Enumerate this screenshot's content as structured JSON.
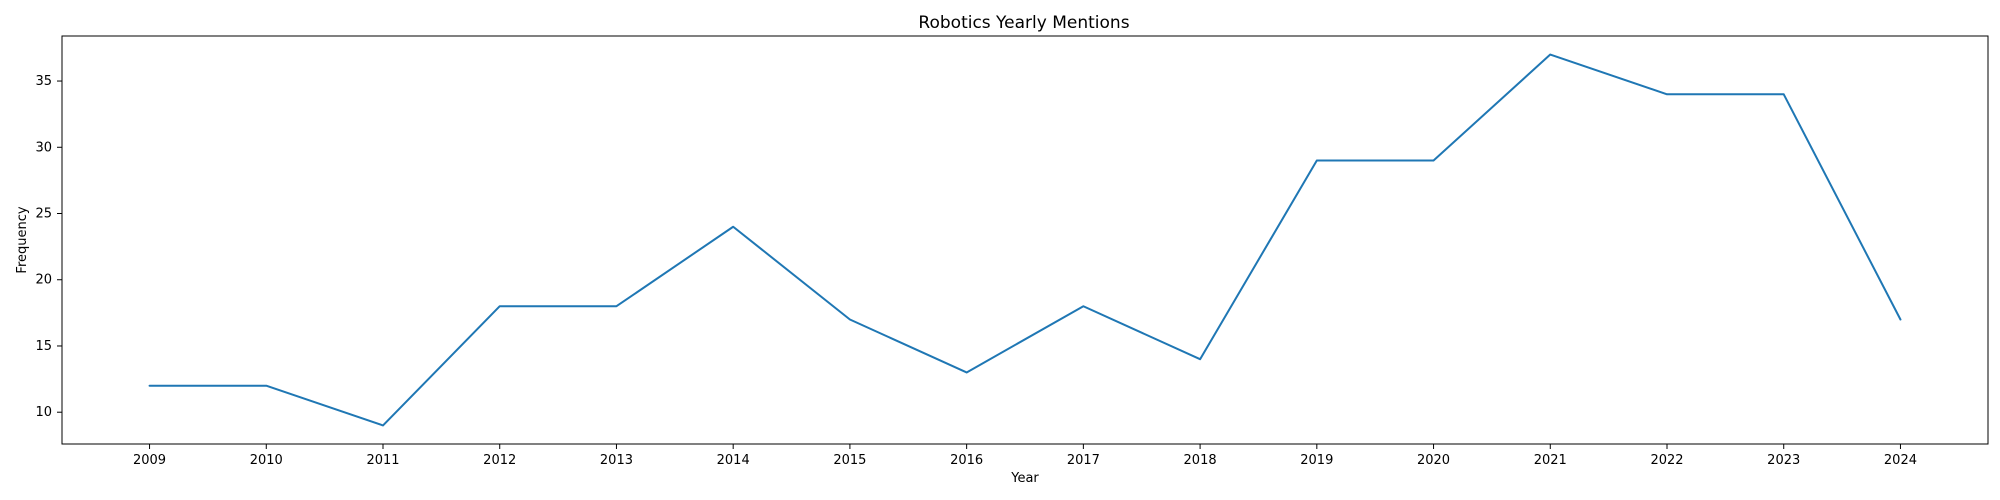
{
  "chart_data": {
    "type": "line",
    "title": "Robotics Yearly Mentions",
    "xlabel": "Year",
    "ylabel": "Frequency",
    "x": [
      2009,
      2010,
      2011,
      2012,
      2013,
      2014,
      2015,
      2016,
      2017,
      2018,
      2019,
      2020,
      2021,
      2022,
      2023,
      2024
    ],
    "series": [
      {
        "values": [
          12,
          12,
          9,
          18,
          18,
          24,
          17,
          13,
          18,
          14,
          29,
          29,
          37,
          34,
          34,
          17
        ],
        "color": "#1f77b4"
      }
    ],
    "x_ticks": [
      "2009",
      "2010",
      "2011",
      "2012",
      "2013",
      "2014",
      "2015",
      "2016",
      "2017",
      "2018",
      "2019",
      "2020",
      "2021",
      "2022",
      "2023",
      "2024"
    ],
    "y_ticks": [
      "10",
      "15",
      "20",
      "25",
      "30",
      "35"
    ],
    "xlim": [
      2008.25,
      2024.75
    ],
    "ylim": [
      7.6,
      38.4
    ],
    "grid": false,
    "legend": false
  }
}
